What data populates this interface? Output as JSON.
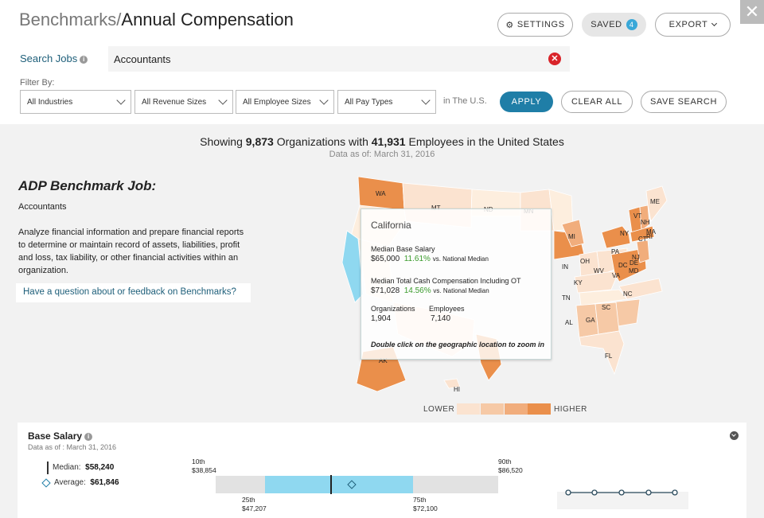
{
  "header": {
    "crumb": "Benchmarks/",
    "title": "Annual Compensation",
    "settings_label": "SETTINGS",
    "saved_label": "SAVED",
    "saved_count": "4",
    "export_label": "EXPORT",
    "close_glyph": "✕"
  },
  "search": {
    "label": "Search Jobs",
    "value": "Accountants"
  },
  "filters": {
    "label": "Filter By:",
    "industry": "All Industries",
    "revenue": "All Revenue Sizes",
    "employees": "All Employee Sizes",
    "pay_types": "All Pay Types",
    "scope": "in The U.S.",
    "apply_label": "APPLY",
    "clear_label": "CLEAR ALL",
    "save_label": "SAVE SEARCH"
  },
  "summary": {
    "prefix": "Showing ",
    "org_count": "9,873",
    "middle": " Organizations with ",
    "emp_count": "41,931",
    "suffix": " Employees in the United States",
    "as_of": "Data as of: March 31, 2016"
  },
  "job": {
    "heading": "ADP Benchmark Job:",
    "name": "Accountants",
    "description": "Analyze financial information and prepare financial reports to determine or maintain record of assets, liabilities, profit and loss, tax liability, or other financial activities within an organization.",
    "feedback": "Have a question about or feedback on Benchmarks?"
  },
  "map": {
    "states": [
      "WA",
      "MT",
      "ND",
      "MN",
      "ME",
      "VT",
      "NH",
      "MA",
      "NY",
      "CT",
      "RI",
      "MI",
      "PA",
      "NJ",
      "IN",
      "OH",
      "DE",
      "MD",
      "DC",
      "WV",
      "VA",
      "KY",
      "NC",
      "TN",
      "SC",
      "AL",
      "GA",
      "FL",
      "AK",
      "HI"
    ],
    "legend_lower": "LOWER",
    "legend_higher": "HIGHER",
    "colors": {
      "highlight": "#8fd8f0",
      "scale": [
        "#fbe3d0",
        "#f6c9a6",
        "#f1ad7c",
        "#ea8f4b"
      ]
    }
  },
  "tooltip": {
    "state": "California",
    "base_label": "Median Base Salary",
    "base_value": "$65,000",
    "base_pct": "11.61%",
    "base_vs": "vs. National Median",
    "cash_label": "Median Total Cash Compensation Including OT",
    "cash_value": "$71,028",
    "cash_pct": "14.56%",
    "cash_vs": "vs. National Median",
    "orgs_label": "Organizations",
    "orgs_value": "1,904",
    "emps_label": "Employees",
    "emps_value": "7,140",
    "hint": "Double click on the geographic location to zoom in"
  },
  "base_salary": {
    "title": "Base Salary",
    "as_of": "Data as of : March 31, 2016",
    "median_label": "Median:",
    "median_value": "$58,240",
    "average_label": "Average:",
    "average_value": "$61,846",
    "p10_label": "10th",
    "p10_value": "$38,854",
    "p90_label": "90th",
    "p90_value": "$86,520",
    "p25_label": "25th",
    "p25_value": "$47,207",
    "p75_label": "75th",
    "p75_value": "$72,100"
  }
}
